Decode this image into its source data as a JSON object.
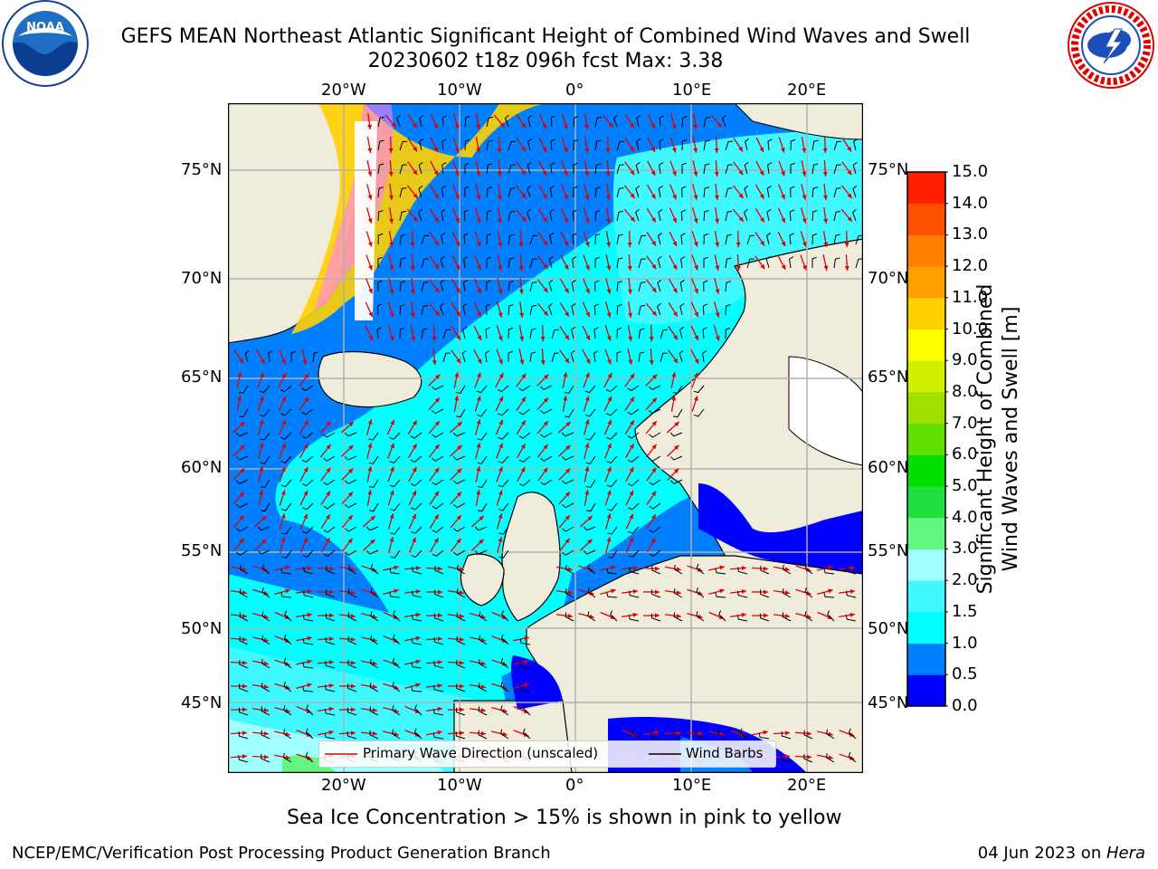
{
  "title": {
    "line1": "GEFS MEAN Northeast Atlantic Significant Height of Combined Wind Waves and Swell",
    "line2": "20230602 t18z 096h fcst   Max: 3.38"
  },
  "logos": {
    "left": "NOAA",
    "right": "NATIONAL WEATHER SERVICE"
  },
  "map": {
    "lon_labels": [
      "20°W",
      "10°W",
      "0°",
      "10°E",
      "20°E"
    ],
    "lat_labels": [
      "75°N",
      "70°N",
      "65°N",
      "60°N",
      "55°N",
      "50°N",
      "45°N"
    ]
  },
  "legend": {
    "wave_dir": "Primary Wave Direction (unscaled)",
    "wind_barbs": "Wind Barbs"
  },
  "colorbar": {
    "label_line1": "Significant Height of Combined",
    "label_line2": "Wind Waves and Swell [m]",
    "ticks": [
      "0.0",
      "0.5",
      "1.0",
      "1.5",
      "2.0",
      "3.0",
      "4.0",
      "5.0",
      "6.0",
      "7.0",
      "8.0",
      "9.0",
      "10.0",
      "11.0",
      "12.0",
      "13.0",
      "14.0",
      "15.0"
    ],
    "colors": [
      "#0000ff",
      "#0080ff",
      "#00ffff",
      "#40f8ff",
      "#a0ffff",
      "#60f880",
      "#20e040",
      "#00e000",
      "#60e000",
      "#a0e000",
      "#d0f000",
      "#ffff00",
      "#ffd000",
      "#ffa000",
      "#ff8000",
      "#ff5000",
      "#ff2000",
      "#ff0000"
    ]
  },
  "note": "Sea Ice Concentration > 15% is shown in pink to yellow",
  "footer": {
    "left": "NCEP/EMC/Verification Post Processing Product Generation Branch",
    "right_date": "04 Jun 2023 on ",
    "right_host": "Hera"
  }
}
